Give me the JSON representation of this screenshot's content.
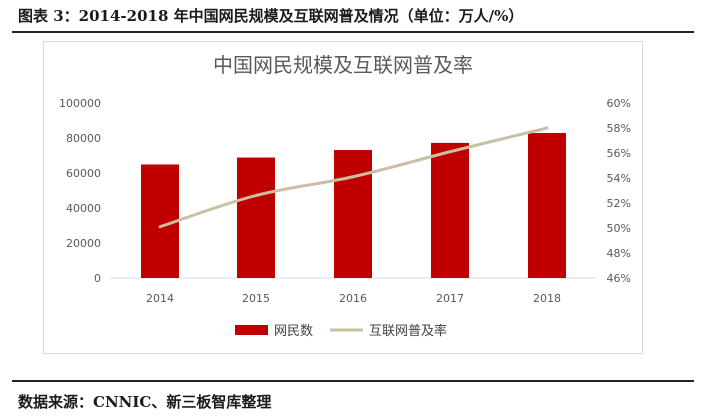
{
  "caption": "图表 3：2014-2018 年中国网民规模及互联网普及情况（单位：万人/%）",
  "source": "数据来源：CNNIC、新三板智库整理",
  "chart_data": {
    "type": "bar",
    "title": "中国网民规模及互联网普及率",
    "categories": [
      "2014",
      "2015",
      "2016",
      "2017",
      "2018"
    ],
    "series": [
      {
        "name": "网民数",
        "type": "bar",
        "axis": "left",
        "color": "#c00000",
        "values": [
          64875,
          68826,
          73125,
          77198,
          82851
        ]
      },
      {
        "name": "互联网普及率",
        "type": "line",
        "axis": "right",
        "color": "#c9c0a2",
        "values": [
          50.1,
          52.6,
          54.1,
          56.1,
          58.0
        ]
      }
    ],
    "ylim": [
      0,
      100000
    ],
    "yticks": [
      "100000",
      "80000",
      "60000",
      "40000",
      "20000",
      "0"
    ],
    "y2lim": [
      46,
      60
    ],
    "y2ticks": [
      "60%",
      "58%",
      "56%",
      "54%",
      "52%",
      "50%",
      "48%",
      "46%"
    ],
    "legend_position": "bottom"
  }
}
